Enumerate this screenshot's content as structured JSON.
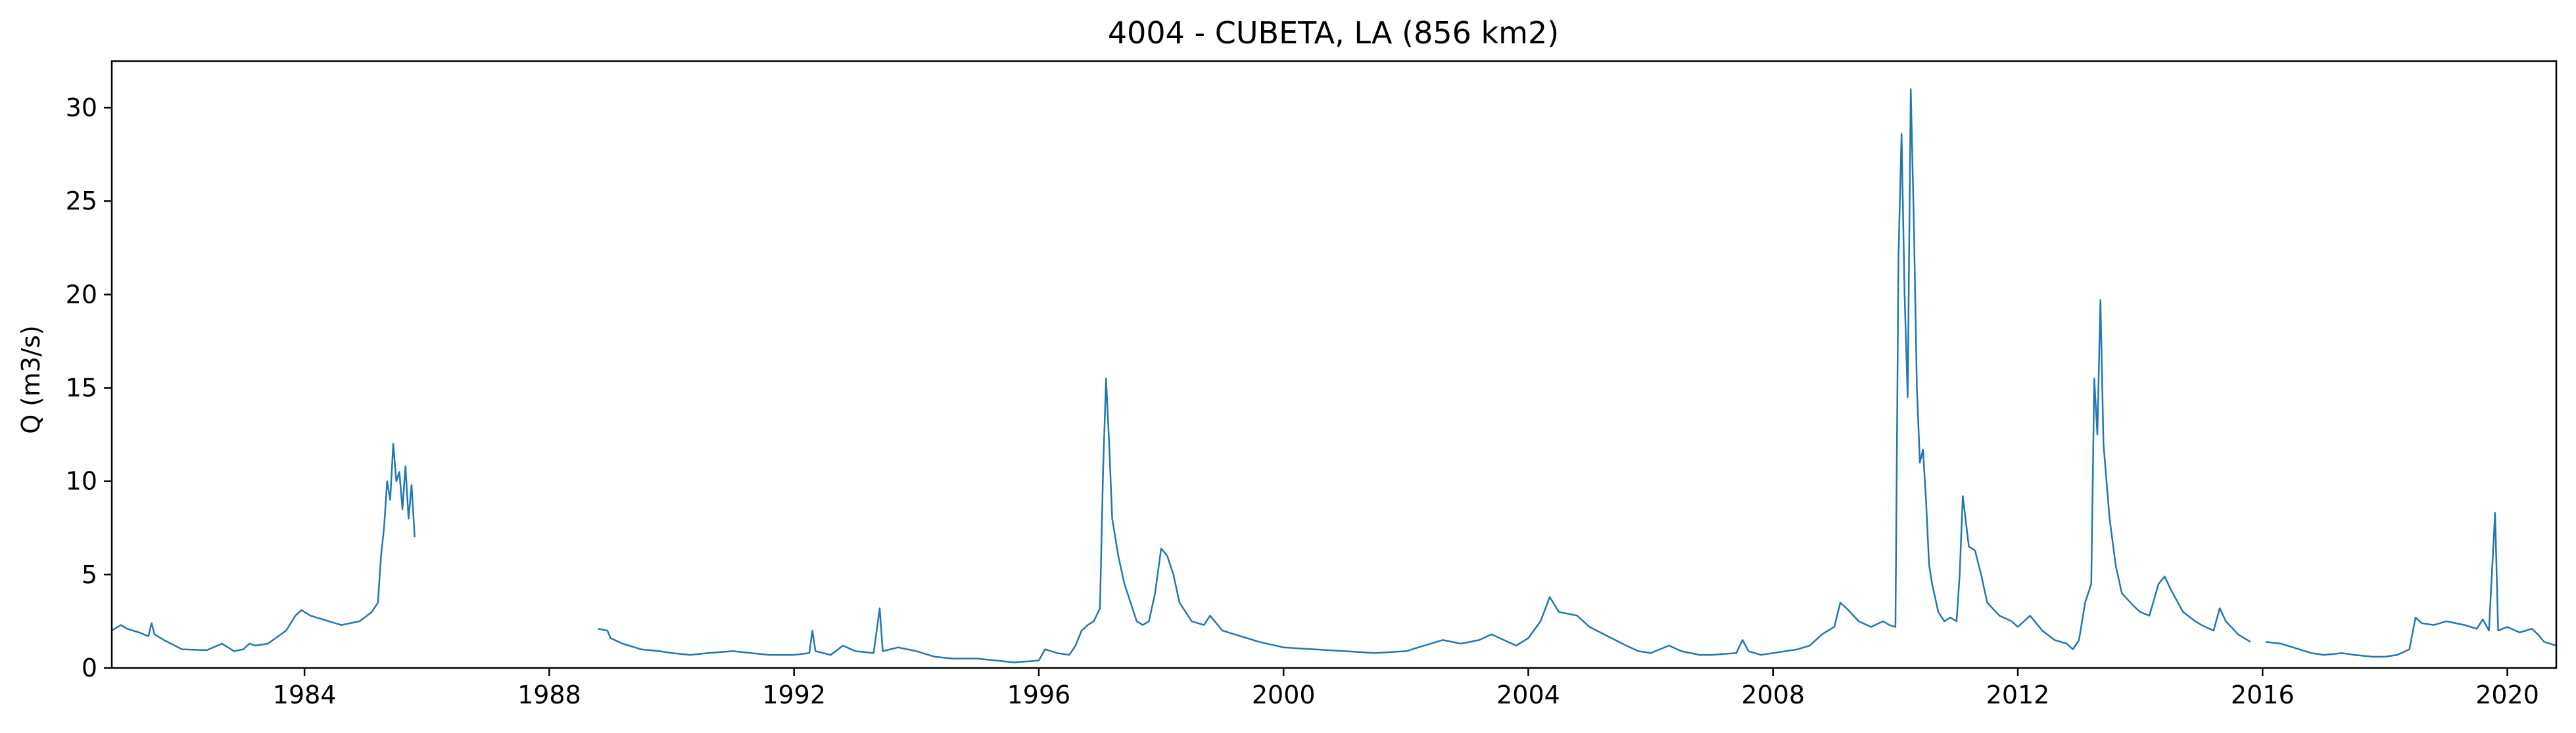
{
  "chart_data": {
    "type": "line",
    "title": "4004 - CUBETA, LA (856 km2)",
    "xlabel": "",
    "ylabel": "Q (m3/s)",
    "xlim": [
      1980.85,
      2020.8
    ],
    "ylim": [
      0,
      32.5
    ],
    "x_ticks": [
      1984,
      1988,
      1992,
      1996,
      2000,
      2004,
      2008,
      2012,
      2016,
      2020
    ],
    "y_ticks": [
      0,
      5,
      10,
      15,
      20,
      25,
      30
    ],
    "grid": false,
    "legend": "none",
    "series": [
      {
        "color": "#1f77b4",
        "segments": [
          [
            [
              1980.85,
              2.0
            ],
            [
              1981.0,
              2.3
            ],
            [
              1981.1,
              2.1
            ],
            [
              1981.3,
              1.9
            ],
            [
              1981.45,
              1.7
            ],
            [
              1981.5,
              2.4
            ],
            [
              1981.55,
              1.8
            ],
            [
              1981.7,
              1.5
            ],
            [
              1982.0,
              1.0
            ],
            [
              1982.4,
              0.95
            ],
            [
              1982.65,
              1.3
            ],
            [
              1982.75,
              1.1
            ],
            [
              1982.85,
              0.9
            ],
            [
              1983.0,
              1.0
            ],
            [
              1983.1,
              1.3
            ],
            [
              1983.2,
              1.2
            ],
            [
              1983.4,
              1.3
            ],
            [
              1983.7,
              2.0
            ],
            [
              1983.85,
              2.8
            ],
            [
              1983.95,
              3.1
            ],
            [
              1984.1,
              2.8
            ],
            [
              1984.3,
              2.6
            ],
            [
              1984.6,
              2.3
            ],
            [
              1984.9,
              2.5
            ],
            [
              1985.1,
              3.0
            ],
            [
              1985.2,
              3.5
            ],
            [
              1985.25,
              6.0
            ],
            [
              1985.3,
              7.5
            ],
            [
              1985.35,
              10.0
            ],
            [
              1985.4,
              9.0
            ],
            [
              1985.45,
              12.0
            ],
            [
              1985.5,
              10.0
            ],
            [
              1985.55,
              10.5
            ],
            [
              1985.6,
              8.5
            ],
            [
              1985.65,
              10.8
            ],
            [
              1985.7,
              8.0
            ],
            [
              1985.75,
              9.8
            ],
            [
              1985.8,
              7.0
            ]
          ],
          [
            [
              1988.8,
              2.1
            ],
            [
              1988.95,
              2.0
            ],
            [
              1989.0,
              1.6
            ],
            [
              1989.2,
              1.3
            ],
            [
              1989.5,
              1.0
            ],
            [
              1989.8,
              0.9
            ],
            [
              1990.0,
              0.8
            ],
            [
              1990.3,
              0.7
            ],
            [
              1990.6,
              0.8
            ],
            [
              1991.0,
              0.9
            ],
            [
              1991.3,
              0.8
            ],
            [
              1991.6,
              0.7
            ],
            [
              1992.0,
              0.7
            ],
            [
              1992.25,
              0.8
            ],
            [
              1992.3,
              2.0
            ],
            [
              1992.35,
              0.9
            ],
            [
              1992.6,
              0.7
            ],
            [
              1992.8,
              1.2
            ],
            [
              1993.0,
              0.9
            ],
            [
              1993.3,
              0.8
            ],
            [
              1993.4,
              3.2
            ],
            [
              1993.45,
              0.9
            ],
            [
              1993.7,
              1.1
            ],
            [
              1994.0,
              0.9
            ],
            [
              1994.3,
              0.6
            ],
            [
              1994.6,
              0.5
            ],
            [
              1995.0,
              0.5
            ],
            [
              1995.3,
              0.4
            ],
            [
              1995.6,
              0.3
            ],
            [
              1996.0,
              0.4
            ],
            [
              1996.1,
              1.0
            ],
            [
              1996.3,
              0.8
            ],
            [
              1996.5,
              0.7
            ],
            [
              1996.6,
              1.2
            ],
            [
              1996.7,
              2.0
            ],
            [
              1996.8,
              2.3
            ],
            [
              1996.9,
              2.5
            ],
            [
              1997.0,
              3.2
            ],
            [
              1997.05,
              10.5
            ],
            [
              1997.1,
              15.5
            ],
            [
              1997.15,
              12.0
            ],
            [
              1997.2,
              8.0
            ],
            [
              1997.3,
              6.0
            ],
            [
              1997.4,
              4.5
            ],
            [
              1997.5,
              3.5
            ],
            [
              1997.6,
              2.5
            ],
            [
              1997.7,
              2.3
            ],
            [
              1997.8,
              2.5
            ],
            [
              1997.9,
              4.0
            ],
            [
              1998.0,
              6.4
            ],
            [
              1998.1,
              6.0
            ],
            [
              1998.2,
              5.0
            ],
            [
              1998.3,
              3.5
            ],
            [
              1998.5,
              2.5
            ],
            [
              1998.7,
              2.3
            ],
            [
              1998.8,
              2.8
            ],
            [
              1999.0,
              2.0
            ],
            [
              1999.3,
              1.7
            ],
            [
              1999.6,
              1.4
            ],
            [
              2000.0,
              1.1
            ],
            [
              2000.5,
              1.0
            ],
            [
              2001.0,
              0.9
            ],
            [
              2001.5,
              0.8
            ],
            [
              2002.0,
              0.9
            ],
            [
              2002.3,
              1.2
            ],
            [
              2002.6,
              1.5
            ],
            [
              2002.9,
              1.3
            ],
            [
              2003.2,
              1.5
            ],
            [
              2003.4,
              1.8
            ],
            [
              2003.6,
              1.5
            ],
            [
              2003.8,
              1.2
            ],
            [
              2004.0,
              1.6
            ],
            [
              2004.2,
              2.5
            ],
            [
              2004.35,
              3.8
            ],
            [
              2004.5,
              3.0
            ],
            [
              2004.8,
              2.8
            ],
            [
              2005.0,
              2.2
            ],
            [
              2005.3,
              1.7
            ],
            [
              2005.6,
              1.2
            ],
            [
              2005.8,
              0.9
            ],
            [
              2006.0,
              0.8
            ],
            [
              2006.3,
              1.2
            ],
            [
              2006.5,
              0.9
            ],
            [
              2006.8,
              0.7
            ],
            [
              2007.0,
              0.7
            ],
            [
              2007.4,
              0.8
            ],
            [
              2007.5,
              1.5
            ],
            [
              2007.6,
              0.9
            ],
            [
              2007.8,
              0.7
            ],
            [
              2008.0,
              0.8
            ],
            [
              2008.4,
              1.0
            ],
            [
              2008.6,
              1.2
            ],
            [
              2008.8,
              1.8
            ],
            [
              2008.9,
              2.0
            ],
            [
              2009.0,
              2.2
            ],
            [
              2009.1,
              3.5
            ],
            [
              2009.2,
              3.2
            ],
            [
              2009.4,
              2.5
            ],
            [
              2009.6,
              2.2
            ],
            [
              2009.8,
              2.5
            ],
            [
              2009.9,
              2.3
            ],
            [
              2010.0,
              2.2
            ],
            [
              2010.05,
              22.0
            ],
            [
              2010.1,
              28.6
            ],
            [
              2010.15,
              20.0
            ],
            [
              2010.2,
              14.5
            ],
            [
              2010.25,
              31.0
            ],
            [
              2010.3,
              24.0
            ],
            [
              2010.35,
              15.0
            ],
            [
              2010.4,
              11.0
            ],
            [
              2010.45,
              11.7
            ],
            [
              2010.5,
              9.0
            ],
            [
              2010.55,
              5.5
            ],
            [
              2010.6,
              4.5
            ],
            [
              2010.7,
              3.0
            ],
            [
              2010.8,
              2.5
            ],
            [
              2010.9,
              2.7
            ],
            [
              2011.0,
              2.5
            ],
            [
              2011.05,
              5.0
            ],
            [
              2011.1,
              9.2
            ],
            [
              2011.2,
              6.5
            ],
            [
              2011.3,
              6.3
            ],
            [
              2011.4,
              5.0
            ],
            [
              2011.5,
              3.5
            ],
            [
              2011.7,
              2.8
            ],
            [
              2011.9,
              2.5
            ],
            [
              2012.0,
              2.2
            ],
            [
              2012.2,
              2.8
            ],
            [
              2012.4,
              2.0
            ],
            [
              2012.6,
              1.5
            ],
            [
              2012.8,
              1.3
            ],
            [
              2012.9,
              1.0
            ],
            [
              2013.0,
              1.5
            ],
            [
              2013.1,
              3.5
            ],
            [
              2013.2,
              4.5
            ],
            [
              2013.25,
              15.5
            ],
            [
              2013.3,
              12.5
            ],
            [
              2013.35,
              19.7
            ],
            [
              2013.4,
              12.0
            ],
            [
              2013.5,
              8.0
            ],
            [
              2013.6,
              5.5
            ],
            [
              2013.7,
              4.0
            ],
            [
              2013.9,
              3.3
            ],
            [
              2014.0,
              3.0
            ],
            [
              2014.15,
              2.8
            ],
            [
              2014.3,
              4.5
            ],
            [
              2014.4,
              4.9
            ],
            [
              2014.5,
              4.2
            ],
            [
              2014.7,
              3.0
            ],
            [
              2014.9,
              2.5
            ],
            [
              2015.0,
              2.3
            ],
            [
              2015.2,
              2.0
            ],
            [
              2015.3,
              3.2
            ],
            [
              2015.4,
              2.5
            ],
            [
              2015.6,
              1.8
            ],
            [
              2015.8,
              1.4
            ]
          ],
          [
            [
              2016.05,
              1.4
            ],
            [
              2016.3,
              1.3
            ],
            [
              2016.5,
              1.1
            ],
            [
              2016.8,
              0.8
            ],
            [
              2017.0,
              0.7
            ],
            [
              2017.3,
              0.8
            ],
            [
              2017.5,
              0.7
            ],
            [
              2017.8,
              0.6
            ],
            [
              2018.0,
              0.6
            ],
            [
              2018.2,
              0.7
            ],
            [
              2018.4,
              1.0
            ],
            [
              2018.5,
              2.7
            ],
            [
              2018.6,
              2.4
            ],
            [
              2018.8,
              2.3
            ],
            [
              2019.0,
              2.5
            ],
            [
              2019.3,
              2.3
            ],
            [
              2019.5,
              2.1
            ],
            [
              2019.6,
              2.6
            ],
            [
              2019.7,
              2.0
            ],
            [
              2019.8,
              8.3
            ],
            [
              2019.85,
              2.0
            ],
            [
              2020.0,
              2.2
            ],
            [
              2020.2,
              1.9
            ],
            [
              2020.4,
              2.1
            ],
            [
              2020.5,
              1.8
            ],
            [
              2020.6,
              1.4
            ],
            [
              2020.8,
              1.2
            ]
          ]
        ]
      }
    ]
  }
}
